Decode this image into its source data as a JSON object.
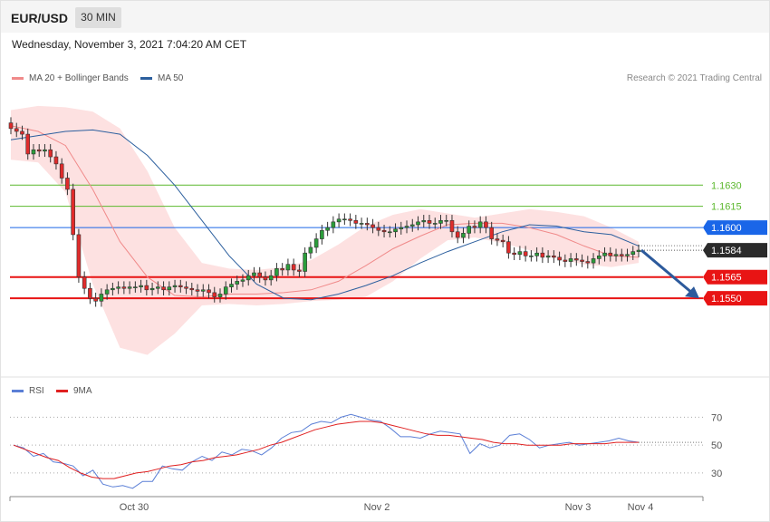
{
  "header": {
    "symbol": "EUR/USD",
    "timeframe": "30 MIN"
  },
  "timestamp": "Wednesday, November 3, 2021 7:04:20 AM CET",
  "legend": {
    "ma20": {
      "label": "MA 20 + Bollinger Bands",
      "color": "#f08a8a"
    },
    "ma50": {
      "label": "MA 50",
      "color": "#2c5f9e"
    },
    "rsi": {
      "label": "RSI",
      "color": "#5b7fd6"
    },
    "rsi_ma": {
      "label": "9MA",
      "color": "#e02020"
    }
  },
  "credit": "Research © 2021 Trading Central",
  "chart_data": [
    {
      "type": "candlestick",
      "title": "EUR/USD 30 MIN",
      "ylim": [
        1.1495,
        1.17
      ],
      "x_labels": [
        "Oct 30",
        "Nov 2",
        "Nov 3",
        "Nov 4"
      ],
      "levels": [
        {
          "value": 1.163,
          "label": "1.1630",
          "color": "#5cb82e",
          "style": "thin"
        },
        {
          "value": 1.1615,
          "label": "1.1615",
          "color": "#5cb82e",
          "style": "thin"
        },
        {
          "value": 1.16,
          "label": "1.1600",
          "color": "#1a66e8",
          "style": "thin"
        },
        {
          "value": 1.1584,
          "label": "1.1584",
          "color": "#2b2b2b",
          "style": "dotted"
        },
        {
          "value": 1.1565,
          "label": "1.1565",
          "color": "#e81414",
          "style": "thick"
        },
        {
          "value": 1.155,
          "label": "1.1550",
          "color": "#e81414",
          "style": "thick"
        }
      ],
      "close_series": [
        1.167,
        1.1668,
        1.1666,
        1.1652,
        1.1655,
        1.1654,
        1.1655,
        1.165,
        1.1645,
        1.1635,
        1.1627,
        1.1595,
        1.1565,
        1.1557,
        1.155,
        1.1548,
        1.1553,
        1.1556,
        1.1557,
        1.1558,
        1.1557,
        1.1558,
        1.1558,
        1.1559,
        1.1556,
        1.1557,
        1.1558,
        1.1556,
        1.1558,
        1.1559,
        1.1558,
        1.1557,
        1.1556,
        1.1555,
        1.1556,
        1.1554,
        1.1551,
        1.1553,
        1.1558,
        1.156,
        1.1562,
        1.1563,
        1.1566,
        1.1568,
        1.1565,
        1.1563,
        1.1566,
        1.1571,
        1.157,
        1.1574,
        1.157,
        1.1569,
        1.1582,
        1.1586,
        1.1592,
        1.1598,
        1.16,
        1.1604,
        1.1606,
        1.1606,
        1.1605,
        1.1603,
        1.1603,
        1.1602,
        1.16,
        1.1598,
        1.1597,
        1.1597,
        1.1599,
        1.16,
        1.1601,
        1.1602,
        1.1604,
        1.1605,
        1.1603,
        1.1603,
        1.1605,
        1.1605,
        1.1597,
        1.1593,
        1.1596,
        1.1601,
        1.16,
        1.1604,
        1.16,
        1.1592,
        1.1591,
        1.159,
        1.1582,
        1.1581,
        1.1583,
        1.158,
        1.158,
        1.1582,
        1.1579,
        1.158,
        1.1579,
        1.1577,
        1.1576,
        1.1578,
        1.1577,
        1.1576,
        1.1575,
        1.1578,
        1.158,
        1.1582,
        1.158,
        1.1581,
        1.158,
        1.1581,
        1.1583,
        1.1584
      ],
      "ma50_series": [
        1.1662,
        1.1665,
        1.1668,
        1.1669,
        1.1666,
        1.1651,
        1.163,
        1.1605,
        1.158,
        1.156,
        1.155,
        1.1549,
        1.1553,
        1.1559,
        1.1566,
        1.1575,
        1.1583,
        1.159,
        1.1597,
        1.1602,
        1.1601,
        1.1597,
        1.1595,
        1.1587
      ],
      "bollinger_upper": [
        1.1683,
        1.1686,
        1.1685,
        1.1682,
        1.167,
        1.164,
        1.16,
        1.1575,
        1.1571,
        1.157,
        1.1572,
        1.1577,
        1.1588,
        1.1601,
        1.1609,
        1.1613,
        1.161,
        1.1607,
        1.161,
        1.1613,
        1.1611,
        1.1608,
        1.16,
        1.159
      ],
      "bollinger_lower": [
        1.1648,
        1.1646,
        1.1625,
        1.156,
        1.1515,
        1.151,
        1.1525,
        1.1545,
        1.1546,
        1.1545,
        1.1546,
        1.1548,
        1.1549,
        1.1551,
        1.1562,
        1.1578,
        1.1591,
        1.1593,
        1.1589,
        1.1584,
        1.1578,
        1.1574,
        1.1572,
        1.1575
      ],
      "ma20_series": [
        1.1672,
        1.1668,
        1.1658,
        1.1627,
        1.159,
        1.1565,
        1.1552,
        1.1551,
        1.1553,
        1.1553,
        1.1554,
        1.1556,
        1.1562,
        1.1573,
        1.1585,
        1.1594,
        1.1602,
        1.1603,
        1.1603,
        1.16,
        1.1595,
        1.1587,
        1.158,
        1.1579
      ],
      "forecast": {
        "from": 1.1584,
        "to": 1.155
      }
    },
    {
      "type": "line",
      "title": "RSI",
      "ylim": [
        15,
        80
      ],
      "ticks": [
        70,
        50,
        30
      ],
      "series": [
        {
          "name": "RSI",
          "values": [
            50,
            48,
            42,
            44,
            38,
            37,
            35,
            28,
            32,
            22,
            20,
            21,
            19,
            24,
            24,
            35,
            33,
            32,
            38,
            42,
            39,
            45,
            43,
            47,
            46,
            43,
            48,
            55,
            59,
            60,
            65,
            67,
            66,
            70,
            72,
            70,
            68,
            67,
            62,
            56,
            56,
            55,
            58,
            60,
            59,
            58,
            44,
            51,
            48,
            50,
            57,
            58,
            54,
            48,
            50,
            51,
            52,
            50,
            51,
            52,
            53,
            55,
            53,
            52
          ]
        },
        {
          "name": "9MA",
          "values": [
            50,
            47,
            44,
            41,
            39,
            34,
            30,
            27,
            26,
            26,
            28,
            30,
            31,
            33,
            35,
            36,
            38,
            39,
            41,
            42,
            43,
            45,
            47,
            50,
            52,
            55,
            58,
            61,
            63,
            65,
            66,
            67,
            67,
            66,
            64,
            62,
            60,
            58,
            57,
            57,
            56,
            55,
            54,
            52,
            51,
            51,
            50,
            50,
            50,
            50,
            51,
            51,
            51,
            51,
            52,
            52,
            52
          ]
        }
      ]
    }
  ]
}
